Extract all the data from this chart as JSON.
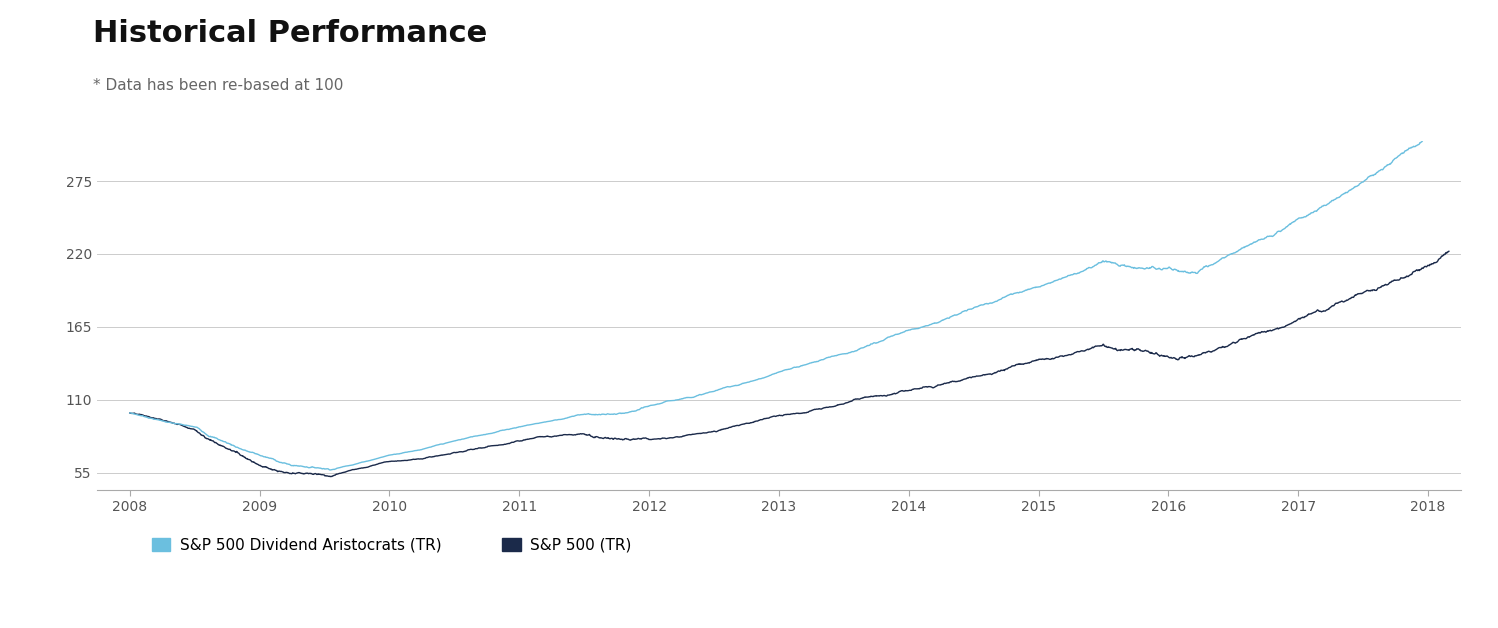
{
  "title": "Historical Performance",
  "subtitle": "* Data has been re-based at 100",
  "title_fontsize": 22,
  "subtitle_fontsize": 11,
  "yticks": [
    55,
    110,
    165,
    220,
    275
  ],
  "ylim": [
    42,
    305
  ],
  "xlim_start": 2007.75,
  "xlim_end": 2018.25,
  "xtick_labels": [
    "2008",
    "2009",
    "2010",
    "2011",
    "2012",
    "2013",
    "2014",
    "2015",
    "2016",
    "2017",
    "2018"
  ],
  "xtick_positions": [
    2008,
    2009,
    2010,
    2011,
    2012,
    2013,
    2014,
    2015,
    2016,
    2017,
    2018
  ],
  "line1_color": "#6BBFDF",
  "line2_color": "#1B2A4A",
  "line1_label": "S&P 500 Dividend Aristocrats (TR)",
  "line2_label": "S&P 500 (TR)",
  "line_width": 1.0,
  "background_color": "#FFFFFF",
  "grid_color": "#CCCCCC",
  "legend_fontsize": 11,
  "legend_square_size": 10
}
